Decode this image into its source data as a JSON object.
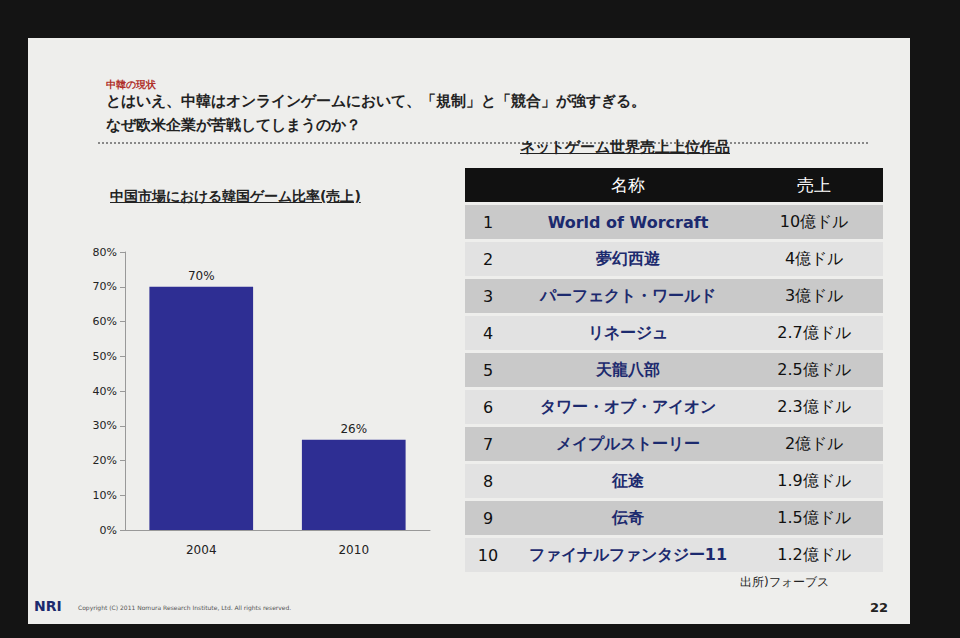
{
  "header": {
    "kicker": "中韓の現状",
    "title_lines": [
      "とはいえ、中韓はオンラインゲームにおいて、「規制」と「競合」が強すぎる。",
      "なぜ欧米企業が苦戦してしまうのか？"
    ]
  },
  "chart_data": {
    "type": "bar",
    "title": "中国市場における韓国ゲーム比率(売上)",
    "categories": [
      "2004",
      "2010"
    ],
    "values": [
      70,
      26
    ],
    "value_labels": [
      "70%",
      "26%"
    ],
    "color": "#2e2e93",
    "ylim": [
      0,
      80
    ],
    "yticks": [
      {
        "value": 0,
        "label": "0%"
      },
      {
        "value": 10,
        "label": "10%"
      },
      {
        "value": 20,
        "label": "20%"
      },
      {
        "value": 30,
        "label": "30%"
      },
      {
        "value": 40,
        "label": "40%"
      },
      {
        "value": 50,
        "label": "50%"
      },
      {
        "value": 60,
        "label": "60%"
      },
      {
        "value": 70,
        "label": "70%"
      },
      {
        "value": 80,
        "label": "80%"
      }
    ],
    "grid": false,
    "data_labels": true
  },
  "table": {
    "title": "ネットゲーム世界売上上位作品",
    "header": [
      "名称",
      "売上"
    ],
    "rows": [
      [
        "1",
        "World of Worcraft",
        "10億ドル"
      ],
      [
        "2",
        "夢幻西遊",
        "4億ドル"
      ],
      [
        "3",
        "パーフェクト・ワールド",
        "3億ドル"
      ],
      [
        "4",
        "リネージュ",
        "2.7億ドル"
      ],
      [
        "5",
        "天龍八部",
        "2.5億ドル"
      ],
      [
        "6",
        "タワー・オブ・アイオン",
        "2.3億ドル"
      ],
      [
        "7",
        "メイプルストーリー",
        "2億ドル"
      ],
      [
        "8",
        "征途",
        "1.9億ドル"
      ],
      [
        "9",
        "伝奇",
        "1.5億ドル"
      ],
      [
        "10",
        "ファイナルファンタジー11",
        "1.2億ドル"
      ]
    ],
    "source": "出所)フォーブス"
  },
  "footer": {
    "logo": "NRI",
    "copyright": "Copyright (C) 2011 Nomura Research Institute, Ltd. All rights reserved.",
    "page": "22"
  }
}
